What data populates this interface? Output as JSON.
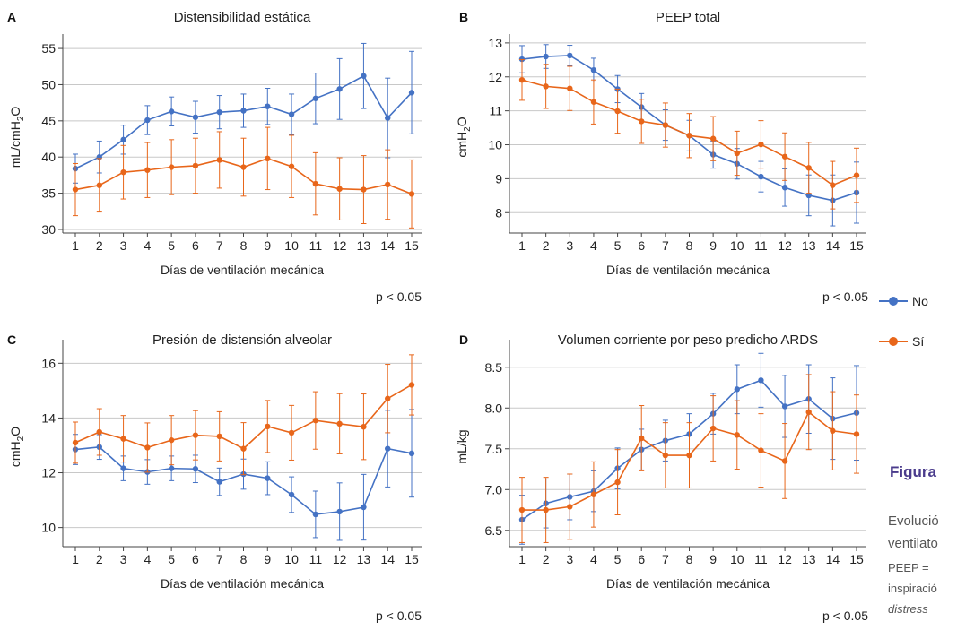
{
  "colors": {
    "series_no": "#4472C4",
    "series_si": "#E8661A",
    "grid": "#c8c8c8"
  },
  "side_panel": {
    "title": "Figura",
    "lines": [
      "Evolució",
      "ventilato",
      "PEEP =",
      "inspiració",
      "distress"
    ]
  },
  "legend": [
    {
      "name": "No",
      "color": "#4472C4"
    },
    {
      "name": "Sí",
      "color": "#E8661A"
    }
  ],
  "chart_data": [
    {
      "panel": "A",
      "type": "line",
      "title": "Distensibilidad estática",
      "xlabel": "Días de ventilación mecánica",
      "ylabel": "mL/cmH2O",
      "ylabel_main": "mL/cmH",
      "ylabel_sub": "2",
      "ylabel_tail": "O",
      "x": [
        1,
        2,
        3,
        4,
        5,
        6,
        7,
        8,
        9,
        10,
        11,
        12,
        13,
        14,
        15
      ],
      "ylim": [
        29.5,
        56
      ],
      "yticks": [
        30,
        35,
        40,
        45,
        50,
        55
      ],
      "grid": true,
      "pvalue": "p < 0.05",
      "series": [
        {
          "name": "No",
          "values": [
            38.4,
            40.0,
            42.4,
            45.1,
            46.3,
            45.5,
            46.2,
            46.4,
            47.0,
            45.9,
            48.1,
            49.4,
            51.2,
            45.4,
            48.9
          ],
          "err": [
            2.0,
            2.2,
            2.0,
            2.0,
            2.0,
            2.2,
            2.3,
            2.3,
            2.5,
            2.8,
            3.5,
            4.2,
            4.5,
            5.5,
            5.7
          ]
        },
        {
          "name": "Sí",
          "values": [
            35.5,
            36.1,
            37.9,
            38.2,
            38.6,
            38.8,
            39.6,
            38.6,
            39.8,
            38.7,
            36.3,
            35.6,
            35.5,
            36.2,
            34.9
          ],
          "err": [
            3.6,
            3.7,
            3.7,
            3.8,
            3.8,
            3.8,
            3.9,
            4.0,
            4.3,
            4.3,
            4.3,
            4.3,
            4.7,
            4.8,
            4.7
          ]
        }
      ]
    },
    {
      "panel": "B",
      "type": "line",
      "title": "PEEP total",
      "xlabel": "Días de ventilación mecánica",
      "ylabel": "cmH2O",
      "ylabel_main": "cmH",
      "ylabel_sub": "2",
      "ylabel_tail": "O",
      "x": [
        1,
        2,
        3,
        4,
        5,
        6,
        7,
        8,
        9,
        10,
        11,
        12,
        13,
        14,
        15
      ],
      "ylim": [
        7.4,
        13.05
      ],
      "yticks": [
        8,
        9,
        10,
        11,
        12,
        13
      ],
      "grid": true,
      "pvalue": "p < 0.05",
      "series": [
        {
          "name": "No",
          "values": [
            12.52,
            12.6,
            12.63,
            12.2,
            11.64,
            11.11,
            10.58,
            10.27,
            9.71,
            9.44,
            9.06,
            8.74,
            8.51,
            8.36,
            8.59
          ],
          "err": [
            0.4,
            0.35,
            0.3,
            0.35,
            0.4,
            0.4,
            0.45,
            0.45,
            0.4,
            0.45,
            0.45,
            0.55,
            0.6,
            0.75,
            0.9
          ]
        },
        {
          "name": "Sí",
          "values": [
            11.91,
            11.72,
            11.66,
            11.26,
            10.99,
            10.69,
            10.58,
            10.27,
            10.18,
            9.75,
            10.01,
            9.65,
            9.32,
            8.81,
            9.1
          ],
          "err": [
            0.6,
            0.65,
            0.65,
            0.65,
            0.65,
            0.65,
            0.65,
            0.65,
            0.65,
            0.65,
            0.7,
            0.7,
            0.75,
            0.7,
            0.8
          ]
        }
      ]
    },
    {
      "panel": "C",
      "type": "line",
      "title": "Presión de distensión alveolar",
      "xlabel": "Días de ventilación mecánica",
      "ylabel": "cmH2O",
      "ylabel_main": "cmH",
      "ylabel_sub": "2",
      "ylabel_tail": "O",
      "x": [
        1,
        2,
        3,
        4,
        5,
        6,
        7,
        8,
        9,
        10,
        11,
        12,
        13,
        14,
        15
      ],
      "ylim": [
        9.3,
        16.6
      ],
      "yticks": [
        10,
        12,
        14,
        16
      ],
      "grid": true,
      "pvalue": "p < 0.05",
      "series": [
        {
          "name": "No",
          "values": [
            12.85,
            12.94,
            12.16,
            12.03,
            12.16,
            12.14,
            11.67,
            11.95,
            11.8,
            11.2,
            10.48,
            10.58,
            10.74,
            12.88,
            12.71
          ],
          "err": [
            0.55,
            0.45,
            0.45,
            0.45,
            0.45,
            0.5,
            0.5,
            0.55,
            0.6,
            0.65,
            0.85,
            1.05,
            1.2,
            1.4,
            1.6
          ]
        },
        {
          "name": "Sí",
          "values": [
            13.1,
            13.49,
            13.24,
            12.92,
            13.19,
            13.37,
            13.33,
            12.88,
            13.69,
            13.46,
            13.91,
            13.79,
            13.68,
            14.71,
            15.21
          ],
          "err": [
            0.75,
            0.85,
            0.85,
            0.9,
            0.9,
            0.9,
            0.9,
            0.95,
            0.95,
            1.0,
            1.05,
            1.1,
            1.2,
            1.25,
            1.1
          ]
        }
      ]
    },
    {
      "panel": "D",
      "type": "line",
      "title": "Volumen corriente por peso predicho ARDS",
      "xlabel": "Días de ventilación mecánica",
      "ylabel": "mL/kg",
      "ylabel_main": "mL/kg",
      "ylabel_sub": "",
      "ylabel_tail": "",
      "x": [
        1,
        2,
        3,
        4,
        5,
        6,
        7,
        8,
        9,
        10,
        11,
        12,
        13,
        14,
        15
      ],
      "ylim": [
        6.3,
        8.75
      ],
      "yticks": [
        6.5,
        7.0,
        7.5,
        8.0,
        8.5
      ],
      "yticklabels": [
        "6.5",
        "7.0",
        "7.5",
        "8.0",
        "8.5"
      ],
      "grid": true,
      "pvalue": "p < 0.05",
      "series": [
        {
          "name": "No",
          "values": [
            6.63,
            6.83,
            6.91,
            6.98,
            7.26,
            7.49,
            7.6,
            7.68,
            7.93,
            8.23,
            8.34,
            8.02,
            8.11,
            7.87,
            7.94
          ],
          "err": [
            0.3,
            0.3,
            0.28,
            0.25,
            0.25,
            0.25,
            0.25,
            0.25,
            0.25,
            0.3,
            0.33,
            0.38,
            0.42,
            0.5,
            0.58
          ]
        },
        {
          "name": "Sí",
          "values": [
            6.75,
            6.75,
            6.79,
            6.94,
            7.09,
            7.63,
            7.42,
            7.42,
            7.75,
            7.67,
            7.48,
            7.35,
            7.95,
            7.72,
            7.68
          ],
          "err": [
            0.4,
            0.4,
            0.4,
            0.4,
            0.4,
            0.4,
            0.4,
            0.4,
            0.4,
            0.42,
            0.45,
            0.46,
            0.46,
            0.48,
            0.48
          ]
        }
      ]
    }
  ]
}
